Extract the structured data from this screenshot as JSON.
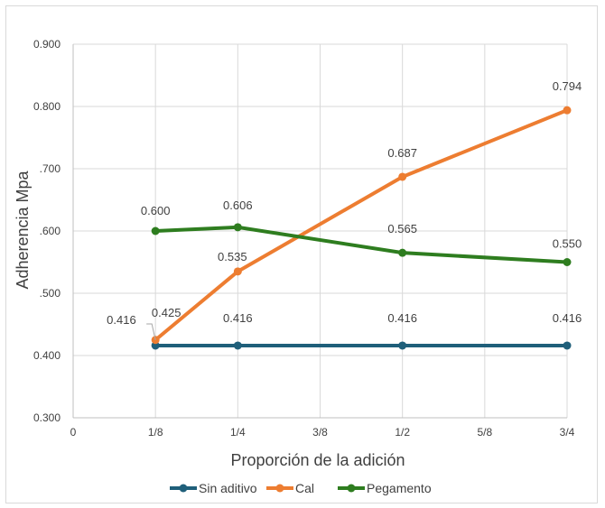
{
  "chart_data": {
    "type": "line",
    "title": "",
    "xlabel": "Proporción de la adición",
    "ylabel": "Adherencia Mpa",
    "x_ticks": [
      "0",
      "1/8",
      "1/4",
      "3/8",
      "1/2",
      "5/8",
      "3/4"
    ],
    "y_ticks": [
      "0.300",
      "0.400",
      ".500",
      ".600",
      ".700",
      "0.800",
      "0.900"
    ],
    "ylim": [
      0.3,
      0.9
    ],
    "x_range": [
      0,
      0.75
    ],
    "grid": true,
    "legend_position": "bottom",
    "series": [
      {
        "name": "Sin aditivo",
        "color": "#1f5f7a",
        "x": [
          0.125,
          0.25,
          0.5,
          0.75
        ],
        "y": [
          0.416,
          0.416,
          0.416,
          0.416
        ],
        "labels": [
          "0.416",
          "0.416",
          "0.416",
          "0.416"
        ]
      },
      {
        "name": "Cal",
        "color": "#ed7d31",
        "x": [
          0.125,
          0.25,
          0.5,
          0.75
        ],
        "y": [
          0.425,
          0.535,
          0.687,
          0.794
        ],
        "labels": [
          "0.425",
          "0.535",
          "0.687",
          "0.794"
        ]
      },
      {
        "name": "Pegamento",
        "color": "#2e7d1f",
        "x": [
          0.125,
          0.25,
          0.5,
          0.75
        ],
        "y": [
          0.6,
          0.606,
          0.565,
          0.55
        ],
        "labels": [
          "0.600",
          "0.606",
          "0.565",
          "0.550"
        ]
      }
    ]
  }
}
